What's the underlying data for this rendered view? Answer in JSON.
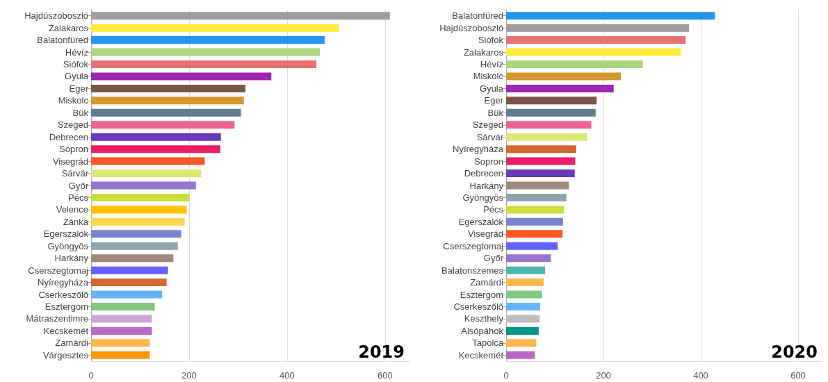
{
  "chart_data": [
    {
      "type": "bar",
      "orientation": "horizontal",
      "title": "2019",
      "categories": [
        "Hajdúszoboszló",
        "Zalakaros",
        "Balatonfüred",
        "Hévíz",
        "Siófok",
        "Gyula",
        "Eger",
        "Miskolc",
        "Bük",
        "Szeged",
        "Debrecen",
        "Sopron",
        "Visegrád",
        "Sárvár",
        "Győr",
        "Pécs",
        "Velence",
        "Zánka",
        "Egerszalók",
        "Gyöngyös",
        "Harkány",
        "Cserszegtomaj",
        "Nyíregyháza",
        "Cserkeszőlő",
        "Esztergom",
        "Mátraszentimre",
        "Kecskemét",
        "Zamárdi",
        "Várgesztes"
      ],
      "values": [
        610,
        506,
        477,
        467,
        460,
        368,
        315,
        312,
        306,
        293,
        265,
        264,
        232,
        225,
        214,
        201,
        195,
        191,
        184,
        177,
        168,
        157,
        154,
        145,
        130,
        124,
        124,
        120,
        120
      ],
      "colors": [
        "#9e9e9e",
        "#ffeb3b",
        "#2196f3",
        "#aed581",
        "#e57373",
        "#9c27b0",
        "#795548",
        "#d4982e",
        "#607d8b",
        "#f06292",
        "#673ab7",
        "#e91e63",
        "#ff5722",
        "#dce775",
        "#9575cd",
        "#cddc39",
        "#ffc107",
        "#ffd54f",
        "#7986cb",
        "#90a4ae",
        "#a1887f",
        "#6262ff",
        "#d2672f",
        "#64b5f6",
        "#81c784",
        "#c9a8d8",
        "#ba68c8",
        "#ffb74d",
        "#ff9800"
      ],
      "xlim": [
        0,
        650
      ],
      "xticks": [
        0,
        200,
        400,
        600
      ],
      "grid": "x"
    },
    {
      "type": "bar",
      "orientation": "horizontal",
      "title": "2020",
      "categories": [
        "Balatonfüred",
        "Hajdúszoboszló",
        "Siófok",
        "Zalakaros",
        "Hévíz",
        "Miskolc",
        "Gyula",
        "Eger",
        "Bük",
        "Szeged",
        "Sárvár",
        "Nyíregyháza",
        "Sopron",
        "Debrecen",
        "Harkány",
        "Gyöngyös",
        "Pécs",
        "Egerszalók",
        "Visegrád",
        "Cserszegtomaj",
        "Győr",
        "Balatonszemes",
        "Zamárdi",
        "Esztergom",
        "Cserkeszőlő",
        "Keszthely",
        "Alsópáhok",
        "Tapolca",
        "Kecskemét"
      ],
      "values": [
        429,
        376,
        369,
        359,
        281,
        236,
        221,
        186,
        184,
        175,
        166,
        144,
        142,
        141,
        129,
        124,
        119,
        117,
        116,
        106,
        92,
        80,
        77,
        74,
        70,
        69,
        67,
        62,
        59
      ],
      "colors": [
        "#2196f3",
        "#9e9e9e",
        "#e57373",
        "#ffeb3b",
        "#aed581",
        "#d4982e",
        "#9c27b0",
        "#795548",
        "#607d8b",
        "#f06292",
        "#dce775",
        "#d2672f",
        "#e91e63",
        "#673ab7",
        "#a1887f",
        "#90a4ae",
        "#cddc39",
        "#7986cb",
        "#ff5722",
        "#6262ff",
        "#9575cd",
        "#4db6ac",
        "#ffb74d",
        "#81c784",
        "#64b5f6",
        "#bdbdbd",
        "#009688",
        "#ffb74d",
        "#ba68c8"
      ],
      "xlim": [
        0,
        650
      ],
      "xticks": [
        0,
        200,
        400,
        600
      ],
      "grid": "x"
    }
  ]
}
